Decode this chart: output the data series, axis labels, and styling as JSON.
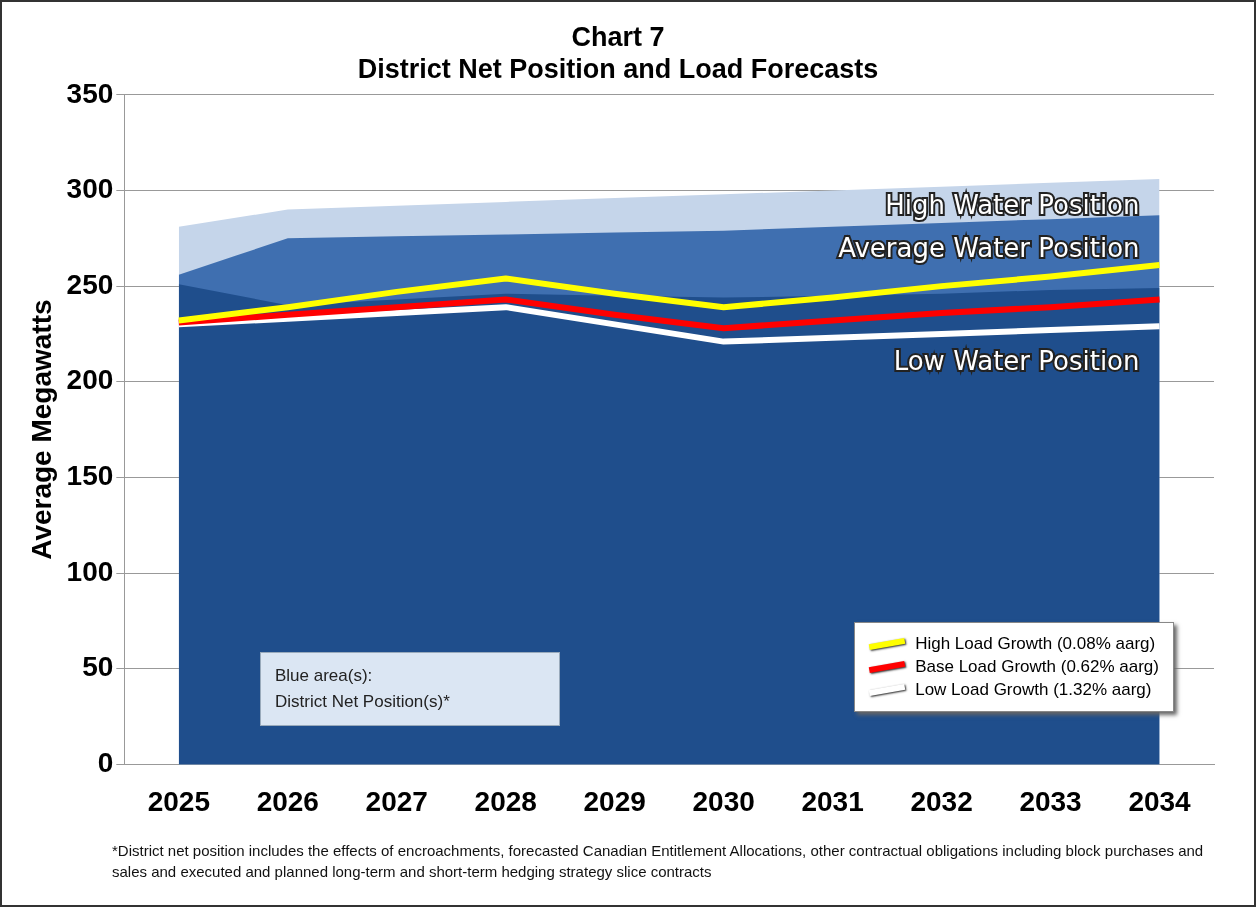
{
  "chart_data": {
    "type": "area",
    "title": "Chart 7",
    "subtitle": "District Net Position and Load Forecasts",
    "ylabel": "Average Megawatts",
    "categories": [
      "2025",
      "2026",
      "2027",
      "2028",
      "2029",
      "2030",
      "2031",
      "2032",
      "2033",
      "2034"
    ],
    "series": [
      {
        "name": "High Water Position",
        "color": "#c5d5ea",
        "values": [
          281,
          290,
          292,
          294,
          296,
          298,
          300,
          302,
          304,
          306
        ]
      },
      {
        "name": "Average Water Position",
        "color": "#3f6fb0",
        "values": [
          256,
          275,
          276,
          277,
          278,
          279,
          281,
          283,
          285,
          287
        ]
      },
      {
        "name": "Low Water Position",
        "color": "#1f4e8c",
        "values": [
          251,
          240,
          243,
          246,
          245,
          244,
          245,
          246,
          248,
          249
        ]
      },
      {
        "name": "High Load Growth (0.08% aarg)",
        "type": "line",
        "color": "#ffff00",
        "values": [
          232,
          239,
          247,
          254,
          246,
          239,
          244,
          250,
          255,
          261
        ]
      },
      {
        "name": "Base Load Growth (0.62% aarg)",
        "type": "line",
        "color": "#ff0000",
        "values": [
          231,
          235,
          239,
          243,
          235,
          228,
          232,
          236,
          239,
          243
        ]
      },
      {
        "name": "Low Load Growth (1.32% aarg)",
        "type": "line",
        "color": "#ffffff",
        "values": [
          230,
          233,
          236,
          239,
          230,
          221,
          223,
          225,
          227,
          229
        ]
      }
    ],
    "ylim": [
      0,
      350
    ],
    "yticks": [
      0,
      50,
      100,
      150,
      200,
      250,
      300,
      350
    ],
    "grid": "y",
    "legend": "bottom right",
    "marker": "none",
    "annotations": [
      "Blue area(s):\nDistrict Net Position(s)*",
      "*District net position includes the effects of encroachments, forecasted Canadian Entitlement Allocations, other contractual obligations including block purchases and sales and executed and planned long-term and short-term hedging strategy slice contracts"
    ]
  }
}
